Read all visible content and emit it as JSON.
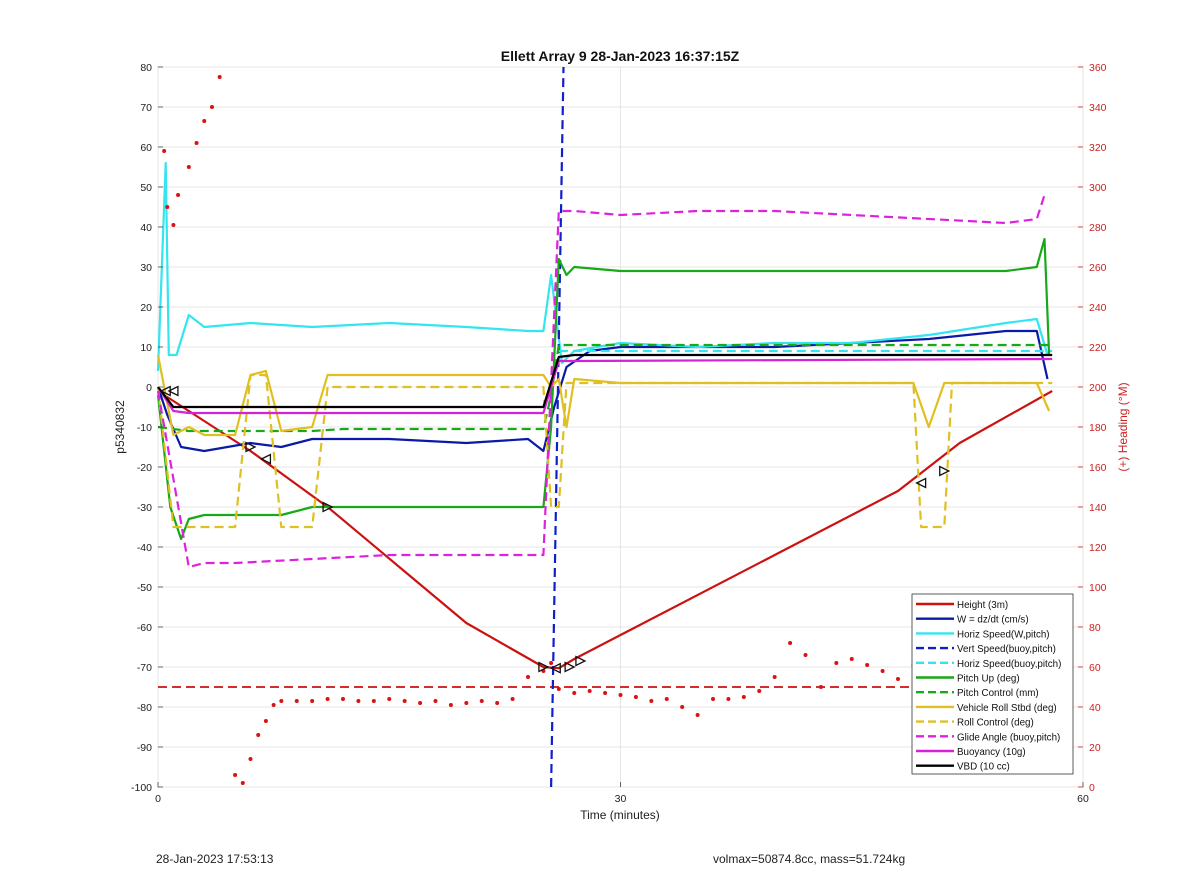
{
  "chart_data": {
    "type": "line",
    "title": "Ellett Array 9 28-Jan-2023 16:37:15Z",
    "xlabel": "Time (minutes)",
    "ylabel": "p5340832",
    "ylabel_right": "(+) Heading (°M)",
    "xlim": [
      0,
      60
    ],
    "ylim": [
      -100,
      80
    ],
    "ylim_right": [
      0,
      360
    ],
    "xticks": [
      "0",
      "30",
      "60"
    ],
    "yticks": [
      "80",
      "70",
      "60",
      "50",
      "40",
      "30",
      "20",
      "10",
      "0",
      "-10",
      "-20",
      "-30",
      "-40",
      "-50",
      "-60",
      "-70",
      "-80",
      "-90",
      "-100"
    ],
    "yticks_right": [
      "360",
      "340",
      "320",
      "300",
      "280",
      "260",
      "240",
      "220",
      "200",
      "180",
      "160",
      "140",
      "120",
      "100",
      "80",
      "60",
      "40",
      "20",
      "0"
    ],
    "grid": true,
    "legend_position": "bottom-right",
    "series": [
      {
        "name": "Height (3m)",
        "color": "#cc1111",
        "dash": "solid",
        "x": [
          0,
          0.8,
          6,
          11,
          20,
          25,
          26,
          27,
          30,
          40,
          48,
          52,
          58
        ],
        "y": [
          -1,
          -3,
          -16,
          -30,
          -59,
          -70,
          -70.3,
          -68,
          -62,
          -42,
          -26,
          -14,
          -1
        ]
      },
      {
        "name": "W = dz/dt (cm/s)",
        "color": "#0a1aa8",
        "dash": "solid",
        "x": [
          0,
          0.6,
          1.5,
          3,
          6,
          8,
          10,
          15,
          20,
          24,
          25,
          25.7,
          26.5,
          28,
          30,
          35,
          40,
          45,
          50,
          55,
          57,
          57.7
        ],
        "y": [
          0,
          -7,
          -15,
          -16,
          -14,
          -15,
          -13,
          -13,
          -14,
          -13,
          -16,
          -5,
          5,
          9,
          10,
          10,
          10,
          11,
          12,
          14,
          14,
          2
        ]
      },
      {
        "name": "Horiz Speed(W,pitch)",
        "color": "#33e5f0",
        "dash": "solid",
        "x": [
          0,
          0.5,
          0.7,
          1.2,
          2,
          3,
          6,
          10,
          15,
          20,
          24,
          25,
          25.5,
          26.2,
          27,
          30,
          35,
          40,
          45,
          50,
          55,
          57,
          57.7
        ],
        "y": [
          4,
          56,
          8,
          8,
          18,
          15,
          16,
          15,
          16,
          15,
          14,
          14,
          28,
          6,
          9,
          11,
          10,
          11,
          11,
          13,
          16,
          17,
          8
        ]
      },
      {
        "name": "Vert Speed(buoy,pitch)",
        "color": "#1020c8",
        "dash": "dash",
        "x": [
          25.5,
          26.3
        ],
        "y": [
          -100,
          80
        ]
      },
      {
        "name": "Horiz Speed(buoy,pitch)",
        "color": "#33e5f0",
        "dash": "dash",
        "x": [
          26,
          58
        ],
        "y": [
          9,
          9
        ]
      },
      {
        "name": "Pitch Up (deg)",
        "color": "#18a818",
        "dash": "solid",
        "x": [
          0,
          0.8,
          1.5,
          2,
          3,
          5,
          8,
          10,
          15,
          20,
          24,
          25,
          25.5,
          26,
          26.5,
          27,
          30,
          35,
          40,
          45,
          50,
          55,
          57,
          57.5,
          57.8
        ],
        "y": [
          -2,
          -30,
          -38,
          -33,
          -32,
          -32,
          -32,
          -30,
          -30,
          -30,
          -30,
          -30,
          -10,
          32,
          28,
          30,
          29,
          29,
          29,
          29,
          29,
          29,
          30,
          37,
          8
        ]
      },
      {
        "name": "Pitch Control (mm)",
        "color": "#18a818",
        "dash": "dash",
        "x": [
          0,
          2,
          4,
          6,
          9,
          10,
          12,
          25,
          25.5,
          26,
          58
        ],
        "y": [
          -10,
          -11,
          -11,
          -11,
          -11,
          -11,
          -10.5,
          -10.5,
          -2,
          10.5,
          10.5
        ]
      },
      {
        "name": "Vehicle Roll Stbd (deg)",
        "color": "#e0c020",
        "dash": "solid",
        "x": [
          0,
          1,
          2,
          3,
          5,
          6,
          7,
          8,
          10,
          11,
          12,
          15,
          20,
          24,
          25,
          25.5,
          26,
          26.5,
          27,
          30,
          35,
          40,
          45,
          49,
          50,
          51,
          52,
          55,
          57,
          57.8
        ],
        "y": [
          8,
          -12,
          -10,
          -12,
          -12,
          3,
          4,
          -11,
          -10,
          3,
          3,
          3,
          3,
          3,
          3,
          0,
          2,
          -10,
          2,
          1,
          1,
          1,
          1,
          1,
          -10,
          1,
          1,
          1,
          1,
          -6
        ]
      },
      {
        "name": "Roll Control (deg)",
        "color": "#e0c020",
        "dash": "dash",
        "x": [
          0,
          1,
          5,
          6,
          7,
          8,
          10,
          11,
          12,
          20,
          25,
          25.5,
          26,
          26.5,
          27,
          30,
          35,
          40,
          45,
          49,
          49.5,
          51,
          51.5,
          55,
          58
        ],
        "y": [
          0,
          -35,
          -35,
          3,
          3,
          -35,
          -35,
          0,
          0,
          0,
          0,
          -30,
          -30,
          1,
          1,
          1,
          1,
          1,
          1,
          1,
          -35,
          -35,
          1,
          1,
          1
        ]
      },
      {
        "name": "Glide Angle (buoy,pitch)",
        "color": "#dd22dd",
        "dash": "dash",
        "x": [
          0,
          2,
          3,
          5,
          10,
          15,
          20,
          24,
          25,
          26,
          27,
          30,
          35,
          40,
          45,
          50,
          55,
          57,
          57.5
        ],
        "y": [
          -1,
          -45,
          -44,
          -44,
          -43,
          -42,
          -42,
          -42,
          -42,
          44,
          44,
          43,
          44,
          44,
          43,
          42,
          41,
          42,
          48
        ]
      },
      {
        "name": "Buoyancy (10g)",
        "color": "#d622d6",
        "dash": "solid",
        "x": [
          0,
          1,
          2,
          25,
          26,
          27,
          58
        ],
        "y": [
          0,
          -6,
          -6.5,
          -6.5,
          6.5,
          6.5,
          7
        ]
      },
      {
        "name": "VBD (10 cc)",
        "color": "#000000",
        "dash": "solid",
        "x": [
          0,
          1,
          2,
          25,
          26,
          27,
          58
        ],
        "y": [
          0,
          -5,
          -5,
          -5,
          7.5,
          8,
          8
        ]
      }
    ],
    "heading_points_x": [
      0.4,
      0.6,
      1,
      1.3,
      2,
      2.5,
      3,
      3.5,
      4,
      5,
      5.5,
      6,
      6.5,
      7,
      7.5,
      8,
      9,
      10,
      11,
      12,
      13,
      14,
      15,
      16,
      17,
      18,
      19,
      20,
      21,
      22,
      23,
      24,
      25,
      25.5,
      26,
      27,
      28,
      29,
      30,
      31,
      32,
      33,
      34,
      35,
      36,
      37,
      38,
      39,
      40,
      41,
      42,
      43,
      44,
      45,
      46,
      47,
      48,
      49,
      50,
      51,
      52,
      53,
      54,
      55,
      56,
      57,
      57.5
    ],
    "heading_points_y": [
      318,
      290,
      281,
      296,
      310,
      322,
      333,
      340,
      355,
      6,
      2,
      14,
      26,
      33,
      41,
      43,
      43,
      43,
      44,
      44,
      43,
      43,
      44,
      43,
      42,
      43,
      41,
      42,
      43,
      42,
      44,
      55,
      58,
      62,
      49,
      47,
      48,
      47,
      46,
      45,
      43,
      44,
      40,
      36,
      44,
      44,
      45,
      48,
      55,
      72,
      66,
      50,
      62,
      64,
      61,
      58,
      54,
      61,
      52,
      50,
      52,
      49,
      52,
      54,
      62,
      60,
      56
    ],
    "heading_points_color": "#dd1111",
    "heading_ref_line_y": -75,
    "markers": [
      {
        "x": 0.5,
        "y": -1,
        "dir": "left"
      },
      {
        "x": 1,
        "y": -1,
        "dir": "left"
      },
      {
        "x": 6,
        "y": -15,
        "dir": "right"
      },
      {
        "x": 7,
        "y": -18,
        "dir": "left"
      },
      {
        "x": 11,
        "y": -30,
        "dir": "right"
      },
      {
        "x": 25,
        "y": -70,
        "dir": "right"
      },
      {
        "x": 25.8,
        "y": -70.3,
        "dir": "left"
      },
      {
        "x": 26.7,
        "y": -70,
        "dir": "right"
      },
      {
        "x": 27.4,
        "y": -68.5,
        "dir": "right"
      },
      {
        "x": 49.5,
        "y": -24,
        "dir": "left"
      },
      {
        "x": 51,
        "y": -21,
        "dir": "right"
      }
    ]
  },
  "footer": {
    "timestamp": "28-Jan-2023 17:53:13",
    "info": "volmax=50874.8cc, mass=51.724kg"
  }
}
